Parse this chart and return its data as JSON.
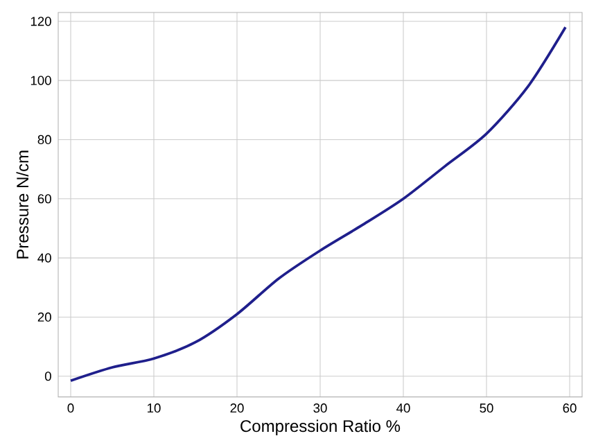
{
  "chart_data": {
    "type": "line",
    "xlabel": "Compression Ratio %",
    "ylabel": "Pressure N/cm",
    "x": [
      0,
      5,
      10,
      15,
      20,
      25,
      30,
      35,
      40,
      45,
      50,
      55,
      59.5
    ],
    "series": [
      {
        "color": "#1f1f8c",
        "values": [
          -1.5,
          3,
          6,
          11.5,
          21,
          33,
          42.5,
          51,
          60,
          71,
          82,
          98,
          118
        ]
      }
    ],
    "xlim": [
      -1.5,
      61.5
    ],
    "ylim": [
      -7,
      123
    ],
    "xticks": [
      0,
      10,
      20,
      30,
      40,
      50,
      60
    ],
    "yticks": [
      0,
      20,
      40,
      60,
      80,
      100,
      120
    ],
    "grid": true,
    "marker": "none",
    "line_style": "solid"
  }
}
